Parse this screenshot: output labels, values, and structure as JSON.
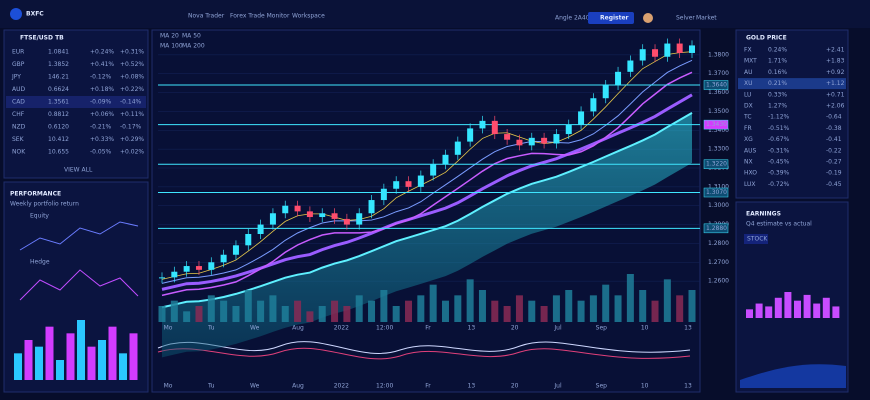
{
  "topbar": {
    "logo": "BXFC",
    "nav": [
      "Nova Trader",
      "Forex Trade Monitor",
      "Workspace"
    ],
    "search": "Angle 2A400",
    "tab": "Register",
    "user": "Selver",
    "menu": "Market"
  },
  "watchlist": {
    "title": "FTSE/USD TB",
    "rows": [
      [
        "EUR",
        "1.0841",
        "+0.24%",
        "+0.31%"
      ],
      [
        "GBP",
        "1.3852",
        "+0.41%",
        "+0.52%"
      ],
      [
        "JPY",
        "146.21",
        "-0.12%",
        "+0.08%"
      ],
      [
        "AUD",
        "0.6624",
        "+0.18%",
        "+0.22%"
      ],
      [
        "CAD",
        "1.3561",
        "-0.09%",
        "-0.14%"
      ],
      [
        "CHF",
        "0.8812",
        "+0.06%",
        "+0.11%"
      ],
      [
        "NZD",
        "0.6120",
        "-0.21%",
        "-0.17%"
      ],
      [
        "SEK",
        "10.412",
        "+0.33%",
        "+0.29%"
      ],
      [
        "NOK",
        "10.655",
        "-0.05%",
        "+0.02%"
      ]
    ],
    "footer": "VIEW ALL"
  },
  "performance": {
    "title": "PERFORMANCE",
    "subtitle": "Weekly portfolio return",
    "legend": [
      "Equity",
      "Hedge"
    ],
    "bars": [
      4,
      6,
      5,
      8,
      3,
      7,
      9,
      5,
      6,
      8,
      4,
      7
    ]
  },
  "chart": {
    "legend": [
      "MA 20",
      "MA 50",
      "MA 100",
      "MA 200"
    ],
    "ylim": [
      1.25,
      1.39
    ],
    "yticks": [
      {
        "value": 1.38,
        "label": "1.3800"
      },
      {
        "value": 1.37,
        "label": "1.3700"
      },
      {
        "value": 1.36,
        "label": "1.3600"
      },
      {
        "value": 1.35,
        "label": "1.3500"
      },
      {
        "value": 1.34,
        "label": "1.3400"
      },
      {
        "value": 1.33,
        "label": "1.3300"
      },
      {
        "value": 1.32,
        "label": "1.3200"
      },
      {
        "value": 1.31,
        "label": "1.3100"
      },
      {
        "value": 1.3,
        "label": "1.3000"
      },
      {
        "value": 1.29,
        "label": "1.2900"
      },
      {
        "value": 1.28,
        "label": "1.2800"
      },
      {
        "value": 1.27,
        "label": "1.2700"
      },
      {
        "value": 1.26,
        "label": "1.2600"
      }
    ],
    "levels": [
      {
        "value": 1.364,
        "label": "1.3640"
      },
      {
        "value": 1.343,
        "label": "1.3430"
      },
      {
        "value": 1.322,
        "label": "1.3220"
      },
      {
        "value": 1.307,
        "label": "1.3070"
      },
      {
        "value": 1.288,
        "label": "1.2880"
      }
    ],
    "closes": [
      1.262,
      1.265,
      1.268,
      1.266,
      1.27,
      1.274,
      1.279,
      1.285,
      1.29,
      1.296,
      1.3,
      1.297,
      1.294,
      1.296,
      1.293,
      1.29,
      1.296,
      1.303,
      1.309,
      1.313,
      1.31,
      1.316,
      1.322,
      1.327,
      1.334,
      1.341,
      1.345,
      1.338,
      1.335,
      1.332,
      1.336,
      1.333,
      1.338,
      1.343,
      1.35,
      1.357,
      1.364,
      1.371,
      1.377,
      1.383,
      1.379,
      1.386,
      1.381,
      1.385
    ],
    "volumes": [
      3,
      4,
      2,
      3,
      5,
      4,
      3,
      6,
      4,
      5,
      3,
      4,
      2,
      3,
      4,
      3,
      5,
      4,
      6,
      3,
      4,
      5,
      7,
      4,
      5,
      8,
      6,
      4,
      3,
      5,
      4,
      3,
      5,
      6,
      4,
      5,
      7,
      5,
      9,
      6,
      4,
      8,
      5,
      6
    ],
    "xlabels": [
      "Mo",
      "Tu",
      "We",
      "Aug",
      "2022",
      "12:00",
      "Fr",
      "13",
      "20",
      "Jul",
      "Sep",
      "10",
      "13"
    ]
  },
  "gold": {
    "title": "GOLD PRICE",
    "rows": [
      [
        "FX",
        "0.24%",
        "+2.41"
      ],
      [
        "MXT",
        "1.71%",
        "+1.83"
      ],
      [
        "AU",
        "0.16%",
        "+0.92"
      ],
      [
        "XU",
        "0.21%",
        "+1.12"
      ],
      [
        "LU",
        "0.33%",
        "+0.71"
      ],
      [
        "DX",
        "1.27%",
        "+2.06"
      ],
      [
        "TC",
        "-1.12%",
        "-0.64"
      ],
      [
        "FR",
        "-0.51%",
        "-0.38"
      ],
      [
        "XG",
        "-0.67%",
        "-0.41"
      ],
      [
        "AUS",
        "-0.31%",
        "-0.22"
      ],
      [
        "NX",
        "-0.45%",
        "-0.27"
      ],
      [
        "HXO",
        "-0.39%",
        "-0.19"
      ],
      [
        "LUX",
        "-0.72%",
        "-0.45"
      ]
    ]
  },
  "earnings": {
    "title": "EARNINGS",
    "subtitle": "Q4 estimate vs actual",
    "filter": "STOCK",
    "bars": [
      3,
      5,
      4,
      7,
      9,
      6,
      8,
      5,
      7,
      4
    ]
  }
}
